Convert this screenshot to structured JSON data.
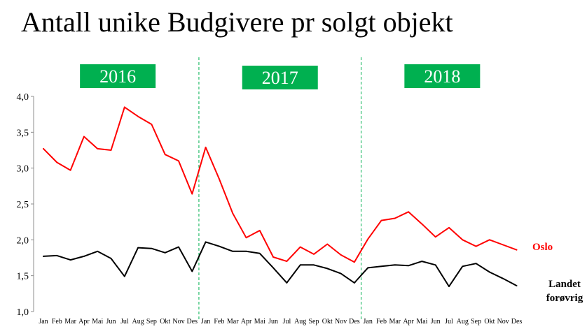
{
  "title": "Antall unike Budgivere pr solgt objekt",
  "chart_data": {
    "type": "line",
    "title": "Antall unike Budgivere pr solgt objekt",
    "xlabel": "",
    "ylabel": "",
    "ylim": [
      1.0,
      4.0
    ],
    "y_ticks": [
      "1,0",
      "1,5",
      "2,0",
      "2,5",
      "3,0",
      "3,5",
      "4,0"
    ],
    "grid": false,
    "years": [
      "2016",
      "2017",
      "2018"
    ],
    "months": [
      "Jan",
      "Feb",
      "Mar",
      "Apr",
      "Mai",
      "Jun",
      "Jul",
      "Aug",
      "Sep",
      "Okt",
      "Nov",
      "Des"
    ],
    "categories": [
      "Jan",
      "Feb",
      "Mar",
      "Apr",
      "Mai",
      "Jun",
      "Jul",
      "Aug",
      "Sep",
      "Okt",
      "Nov",
      "Des",
      "Jan",
      "Feb",
      "Mar",
      "Apr",
      "Mai",
      "Jun",
      "Jul",
      "Aug",
      "Sep",
      "Okt",
      "Nov",
      "Des",
      "Jan",
      "Feb",
      "Mar",
      "Apr",
      "Mai",
      "Jun",
      "Jul",
      "Aug",
      "Sep",
      "Okt",
      "Nov",
      "Des"
    ],
    "series": [
      {
        "name": "Oslo",
        "color": "#ff0000",
        "values": [
          3.27,
          3.08,
          2.97,
          3.44,
          3.27,
          3.25,
          3.85,
          3.72,
          3.61,
          3.19,
          3.1,
          2.64,
          3.29,
          2.85,
          2.37,
          2.03,
          2.13,
          1.76,
          1.7,
          1.9,
          1.8,
          1.94,
          1.79,
          1.69,
          2.01,
          2.27,
          2.3,
          2.39,
          2.22,
          2.04,
          2.17,
          2.0,
          1.91,
          2.0,
          1.93,
          1.86
        ]
      },
      {
        "name": "Landet forøvrig",
        "color": "#000000",
        "values": [
          1.77,
          1.78,
          1.72,
          1.77,
          1.84,
          1.74,
          1.49,
          1.89,
          1.88,
          1.82,
          1.9,
          1.56,
          1.97,
          1.91,
          1.84,
          1.84,
          1.81,
          1.61,
          1.4,
          1.65,
          1.65,
          1.6,
          1.53,
          1.4,
          1.61,
          1.63,
          1.65,
          1.64,
          1.7,
          1.65,
          1.35,
          1.63,
          1.67,
          1.55,
          1.46,
          1.36
        ]
      }
    ],
    "colors": {
      "year_box": "#00b050",
      "divider": "#00b050"
    }
  }
}
